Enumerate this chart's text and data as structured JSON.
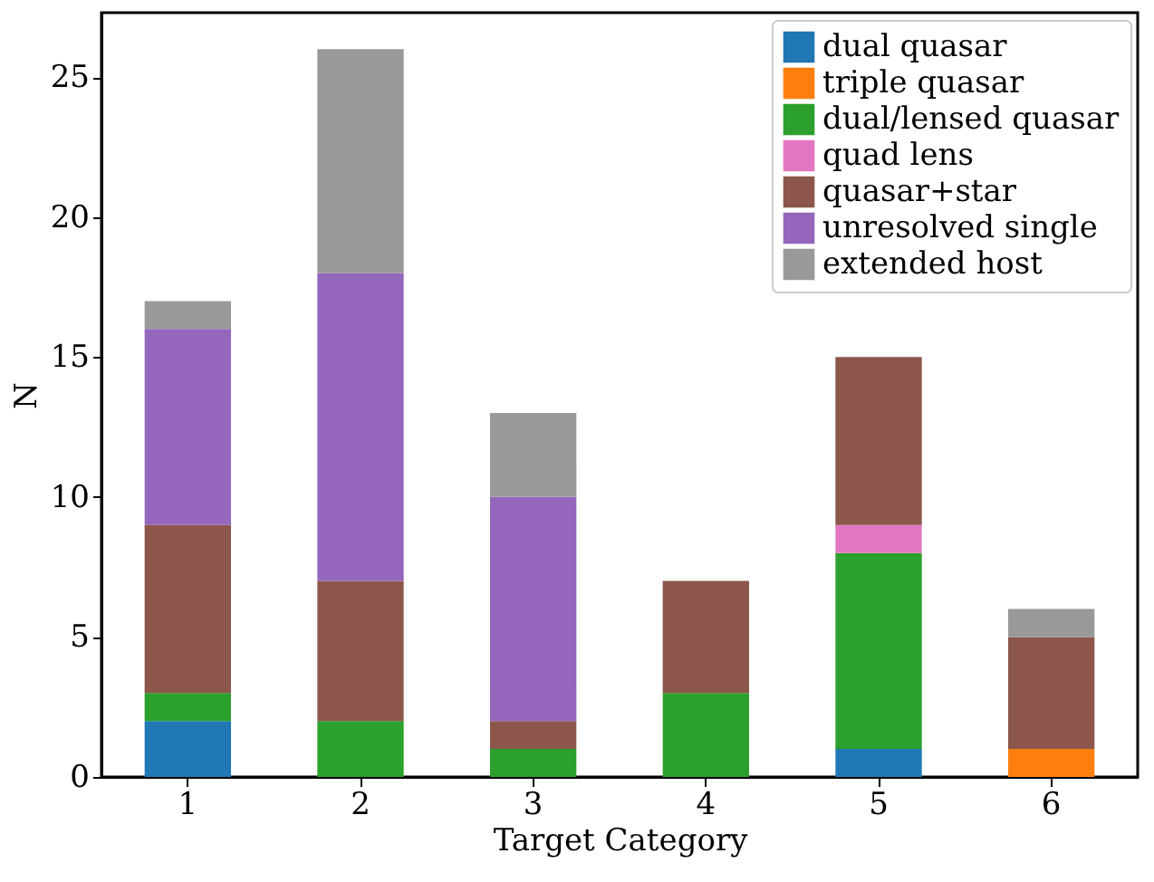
{
  "chart_data": {
    "type": "bar",
    "stacked": true,
    "xlabel": "Target Category",
    "ylabel": "N",
    "categories": [
      "1",
      "2",
      "3",
      "4",
      "5",
      "6"
    ],
    "series": [
      {
        "name": "dual quasar",
        "color": "#1f77b4",
        "values": [
          2,
          0,
          0,
          0,
          1,
          0
        ]
      },
      {
        "name": "triple quasar",
        "color": "#ff7f0e",
        "values": [
          0,
          0,
          0,
          0,
          0,
          1
        ]
      },
      {
        "name": "dual/lensed quasar",
        "color": "#2ca02c",
        "values": [
          1,
          2,
          1,
          3,
          7,
          0
        ]
      },
      {
        "name": "quad lens",
        "color": "#e377c2",
        "values": [
          0,
          0,
          0,
          0,
          1,
          0
        ]
      },
      {
        "name": "quasar+star",
        "color": "#8c564b",
        "values": [
          6,
          5,
          1,
          4,
          6,
          4
        ]
      },
      {
        "name": "unresolved single",
        "color": "#9467bd",
        "values": [
          7,
          11,
          8,
          0,
          0,
          0
        ]
      },
      {
        "name": "extended host",
        "color": "#999999",
        "values": [
          1,
          8,
          3,
          0,
          0,
          1
        ]
      }
    ],
    "ylim": [
      0,
      27.3
    ],
    "yticks": [
      0,
      5,
      10,
      15,
      20,
      25
    ],
    "grid": false,
    "legend": "top right"
  }
}
